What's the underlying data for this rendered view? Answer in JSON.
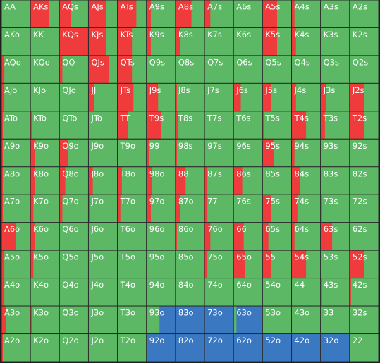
{
  "grid": {
    "hands": [
      [
        "AA",
        "AKs",
        "AQs",
        "AJs",
        "ATs",
        "A9s",
        "A8s",
        "A7s",
        "A6s",
        "A5s",
        "A4s",
        "A3s",
        "A2s"
      ],
      [
        "AKo",
        "KK",
        "KQs",
        "KJs",
        "KTs",
        "K9s",
        "K8s",
        "K7s",
        "K6s",
        "K5s",
        "K4s",
        "K3s",
        "K2s"
      ],
      [
        "AQo",
        "KQo",
        "QQ",
        "QJs",
        "QTs",
        "Q9s",
        "Q8s",
        "Q7s",
        "Q6s",
        "Q5s",
        "Q4s",
        "Q3s",
        "Q2s"
      ],
      [
        "AJo",
        "KJo",
        "QJo",
        "JJ",
        "JTs",
        "J9s",
        "J8s",
        "J7s",
        "J6s",
        "J5s",
        "J4s",
        "J3s",
        "J2s"
      ],
      [
        "ATo",
        "KTo",
        "QTo",
        "JTo",
        "TT",
        "T9s",
        "T8s",
        "T7s",
        "T6s",
        "T5s",
        "T4s",
        "T3s",
        "T2s"
      ],
      [
        "A9o",
        "K9o",
        "Q9o",
        "J9o",
        "T9o",
        "99",
        "98s",
        "97s",
        "96s",
        "95s",
        "94s",
        "93s",
        "92s"
      ],
      [
        "A8o",
        "K8o",
        "Q8o",
        "J8o",
        "T8o",
        "98o",
        "88",
        "87s",
        "86s",
        "85s",
        "84s",
        "83s",
        "82s"
      ],
      [
        "A7o",
        "K7o",
        "Q7o",
        "J7o",
        "T7o",
        "97o",
        "87o",
        "77",
        "76s",
        "75s",
        "74s",
        "73s",
        "72s"
      ],
      [
        "A6o",
        "K6o",
        "Q6o",
        "J6o",
        "T6o",
        "96o",
        "86o",
        "76o",
        "66",
        "65s",
        "64s",
        "63s",
        "62s"
      ],
      [
        "A5o",
        "K5o",
        "Q5o",
        "J5o",
        "T5o",
        "95o",
        "85o",
        "75o",
        "65o",
        "55",
        "54s",
        "53s",
        "52s"
      ],
      [
        "A4o",
        "K4o",
        "Q4o",
        "J4o",
        "T4o",
        "94o",
        "84o",
        "74o",
        "64o",
        "54o",
        "44",
        "43s",
        "42s"
      ],
      [
        "A3o",
        "K3o",
        "Q3o",
        "J3o",
        "T3o",
        "93o",
        "83o",
        "73o",
        "63o",
        "53o",
        "43o",
        "33",
        "32s"
      ],
      [
        "A2o",
        "K2o",
        "Q2o",
        "J2o",
        "T2o",
        "92o",
        "82o",
        "72o",
        "62o",
        "52o",
        "42o",
        "32o",
        "22"
      ]
    ],
    "raise": [
      [
        0,
        0.65,
        0.4,
        0.6,
        0.65,
        0.15,
        0.55,
        0.2,
        0,
        0.5,
        0.1,
        0,
        0
      ],
      [
        0,
        0,
        1,
        0.6,
        0.5,
        0.15,
        0.15,
        0,
        0,
        0.5,
        0.15,
        0,
        0
      ],
      [
        0.1,
        0,
        0.1,
        0.7,
        0.5,
        0,
        0,
        0,
        0,
        0,
        0,
        0,
        0
      ],
      [
        0.1,
        0,
        0,
        0.2,
        0.55,
        0.4,
        0.05,
        0,
        0.25,
        0.3,
        0.15,
        0.2,
        0.5
      ],
      [
        0.05,
        0.05,
        0,
        0,
        0.35,
        0.5,
        0.1,
        0,
        0,
        0.05,
        0.5,
        0.15,
        0.5
      ],
      [
        0.05,
        0.15,
        0.3,
        0,
        0,
        0.1,
        0.05,
        0,
        0,
        0.4,
        0.1,
        0,
        0
      ],
      [
        0.05,
        0.15,
        0.2,
        0.15,
        0.15,
        0.2,
        0.35,
        0.1,
        0.3,
        0,
        0.3,
        0,
        0
      ],
      [
        0.05,
        0.1,
        0.1,
        0.05,
        0.1,
        0.15,
        0.15,
        0.1,
        0,
        0.3,
        0.2,
        0.05,
        0
      ],
      [
        0.5,
        0.15,
        0,
        0,
        0,
        0,
        0.05,
        0.2,
        0.35,
        0.2,
        0.1,
        0.4,
        0
      ],
      [
        0.1,
        0.1,
        0,
        0,
        0,
        0,
        0,
        0.1,
        0.4,
        0.3,
        0.5,
        0,
        0.5
      ],
      [
        0.1,
        0,
        0,
        0,
        0,
        0,
        0,
        0,
        0,
        0,
        0,
        0.05,
        0.05
      ],
      [
        0.15,
        0.05,
        0,
        0,
        0,
        0,
        0,
        0,
        0,
        0,
        0,
        0,
        0
      ],
      [
        0.05,
        0,
        0,
        0,
        0,
        0,
        0,
        0,
        0,
        0,
        0,
        0,
        0
      ]
    ],
    "call": [
      [
        0,
        0,
        0,
        0,
        0,
        0,
        0,
        0,
        0,
        0,
        0,
        0,
        0
      ],
      [
        0,
        0,
        0,
        0,
        0,
        0,
        0,
        0,
        0,
        0,
        0,
        0,
        0
      ],
      [
        0,
        0,
        0,
        0,
        0,
        0,
        0,
        0,
        0,
        0,
        0,
        0,
        0
      ],
      [
        0,
        0,
        0,
        0,
        0,
        0,
        0,
        0,
        0,
        0,
        0,
        0,
        0
      ],
      [
        0,
        0,
        0,
        0,
        0,
        0,
        0,
        0,
        0,
        0,
        0,
        0,
        0
      ],
      [
        0,
        0,
        0,
        0,
        0,
        0,
        0,
        0,
        0,
        0,
        0,
        0,
        0
      ],
      [
        0,
        0,
        0,
        0,
        0,
        0,
        0,
        0,
        0,
        0,
        0,
        0,
        0
      ],
      [
        0,
        0,
        0,
        0,
        0,
        0,
        0,
        0,
        0,
        0,
        0,
        0,
        0
      ],
      [
        0,
        0,
        0,
        0,
        0,
        0,
        0,
        0,
        0,
        0,
        0,
        0,
        0
      ],
      [
        0,
        0,
        0,
        0,
        0,
        0,
        0,
        0,
        0,
        0,
        0,
        0,
        0
      ],
      [
        0,
        0,
        0,
        0,
        0,
        0,
        0,
        0,
        0,
        0,
        0,
        0,
        0
      ],
      [
        0,
        0,
        0,
        0,
        0,
        0.55,
        1,
        1,
        0.9,
        0,
        0,
        0,
        0
      ],
      [
        0,
        0,
        0,
        0,
        0,
        1,
        1,
        1,
        1,
        1,
        1,
        1,
        0
      ]
    ]
  }
}
